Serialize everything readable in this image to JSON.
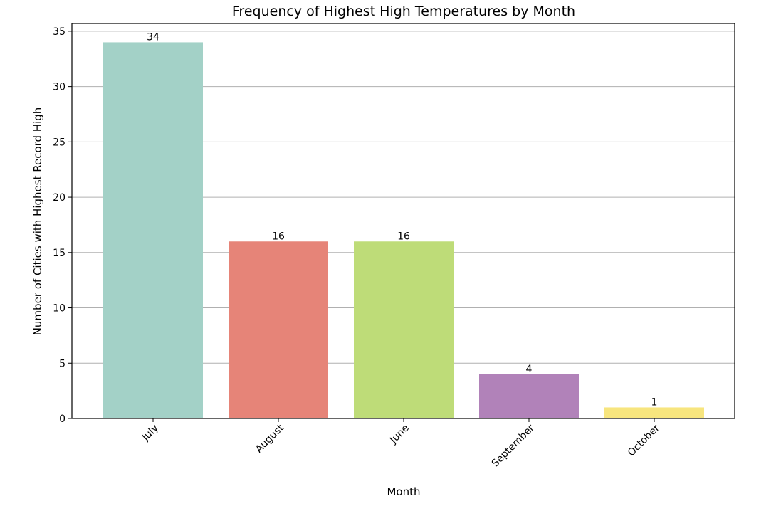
{
  "chart_data": {
    "type": "bar",
    "title": "Frequency of Highest High Temperatures by Month",
    "xlabel": "Month",
    "ylabel": "Number of Cities with Highest Record High",
    "categories": [
      "July",
      "August",
      "June",
      "September",
      "October"
    ],
    "values": [
      34,
      16,
      16,
      4,
      1
    ],
    "data_labels": [
      "34",
      "16",
      "16",
      "4",
      "1"
    ],
    "colors": [
      "#a3d1c7",
      "#e68478",
      "#bedc78",
      "#b182b9",
      "#f7e57e"
    ],
    "ylim": [
      0,
      35.7
    ],
    "yticks": [
      0,
      5,
      10,
      15,
      20,
      25,
      30,
      35
    ],
    "ytick_labels": [
      "0",
      "5",
      "10",
      "15",
      "20",
      "25",
      "30",
      "35"
    ],
    "grid": "y-axis",
    "xtick_rotation": 45
  }
}
